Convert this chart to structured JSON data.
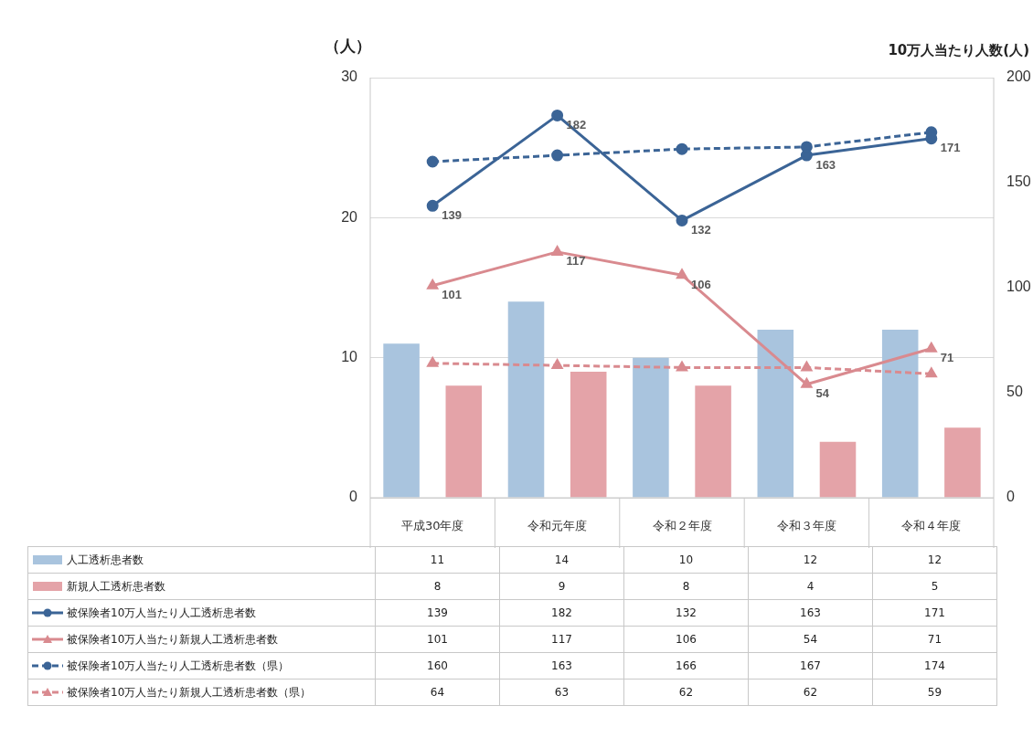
{
  "chart_data": {
    "type": "bar",
    "ylabel": "（人）",
    "y2label": "10万人当たり人数(人)",
    "categories": [
      "平成30年度",
      "令和元年度",
      "令和２年度",
      "令和３年度",
      "令和４年度"
    ],
    "series": [
      {
        "name": "人工透析患者数",
        "color": "#a9c4de",
        "values": [
          11,
          14,
          10,
          12,
          12
        ]
      },
      {
        "name": "新規人工透析患者数",
        "color": "#e4a3a8",
        "values": [
          8,
          9,
          8,
          4,
          5
        ]
      },
      {
        "name": "被保険者10万人当たり人工透析患者数",
        "type": "line",
        "axis": "y2",
        "color": "#3b6496",
        "marker": "circle",
        "line_style": "solid",
        "values": [
          139,
          182,
          132,
          163,
          171
        ],
        "value_labels": [
          "139",
          "182",
          "132",
          "163",
          "171"
        ]
      },
      {
        "name": "被保険者10万人当たり新規人工透析患者数",
        "type": "line",
        "axis": "y2",
        "color": "#d98a8f",
        "marker": "triangle",
        "line_style": "solid",
        "values": [
          101,
          117,
          106,
          54,
          71
        ],
        "value_labels": [
          "101",
          "117",
          "106",
          "54",
          "71"
        ]
      },
      {
        "name": "被保険者10万人当たり人工透析患者数（県）",
        "type": "line",
        "axis": "y2",
        "color": "#3b6496",
        "marker": "circle",
        "line_style": "dashed",
        "values": [
          160,
          163,
          166,
          167,
          174
        ]
      },
      {
        "name": "被保険者10万人当たり新規人工透析患者数（県）",
        "type": "line",
        "axis": "y2",
        "color": "#d98a8f",
        "marker": "triangle",
        "line_style": "dashed",
        "values": [
          64,
          63,
          62,
          62,
          59
        ]
      }
    ],
    "ylim": [
      0,
      30
    ],
    "yticks": [
      0,
      10,
      20,
      30
    ],
    "y2lim": [
      0,
      200
    ],
    "y2ticks": [
      0,
      50,
      100,
      150,
      200
    ],
    "grid": "y",
    "legend": "bottom",
    "data_labels": true
  }
}
